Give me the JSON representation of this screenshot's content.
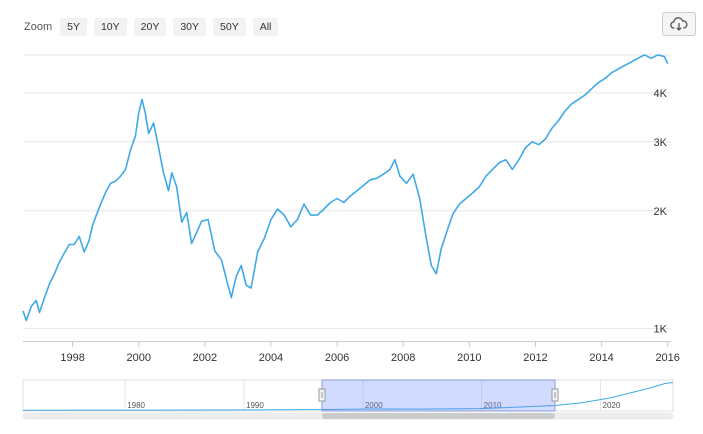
{
  "zoom": {
    "label": "Zoom",
    "buttons": [
      "5Y",
      "10Y",
      "20Y",
      "30Y",
      "50Y",
      "All"
    ]
  },
  "export": {
    "icon": "cloud-download-icon"
  },
  "chart_data": {
    "type": "line",
    "y_scale": "log",
    "grid": true,
    "xlim": [
      1996.5,
      2016.1
    ],
    "ylim": [
      930,
      5300
    ],
    "x_tick_labels": [
      "1998",
      "2000",
      "2002",
      "2004",
      "2006",
      "2008",
      "2010",
      "2012",
      "2014",
      "2016"
    ],
    "y_ticks": [
      {
        "value": 1000,
        "label": "1K"
      },
      {
        "value": 2000,
        "label": "2K"
      },
      {
        "value": 3000,
        "label": "3K"
      },
      {
        "value": 4000,
        "label": "4K"
      }
    ],
    "y_gridlines": [
      1000,
      2000,
      3000,
      4000,
      5000
    ],
    "series": [
      {
        "color": "#3fa9e8",
        "x": [
          1996.5,
          1996.6,
          1996.75,
          1996.9,
          1997.0,
          1997.15,
          1997.3,
          1997.45,
          1997.6,
          1997.75,
          1997.9,
          1998.05,
          1998.2,
          1998.35,
          1998.5,
          1998.6,
          1998.7,
          1998.85,
          1999.0,
          1999.15,
          1999.3,
          1999.45,
          1999.6,
          1999.75,
          1999.9,
          2000.0,
          2000.1,
          2000.2,
          2000.3,
          2000.45,
          2000.6,
          2000.75,
          2000.9,
          2001.0,
          2001.15,
          2001.3,
          2001.45,
          2001.6,
          2001.75,
          2001.9,
          2002.1,
          2002.3,
          2002.5,
          2002.7,
          2002.8,
          2002.95,
          2003.1,
          2003.25,
          2003.4,
          2003.6,
          2003.8,
          2004.0,
          2004.2,
          2004.4,
          2004.6,
          2004.8,
          2005.0,
          2005.2,
          2005.4,
          2005.6,
          2005.8,
          2006.0,
          2006.2,
          2006.4,
          2006.6,
          2006.8,
          2007.0,
          2007.2,
          2007.4,
          2007.6,
          2007.75,
          2007.9,
          2008.1,
          2008.3,
          2008.5,
          2008.7,
          2008.85,
          2009.0,
          2009.15,
          2009.35,
          2009.5,
          2009.7,
          2009.9,
          2010.1,
          2010.3,
          2010.5,
          2010.7,
          2010.9,
          2011.1,
          2011.3,
          2011.5,
          2011.7,
          2011.9,
          2012.1,
          2012.3,
          2012.5,
          2012.7,
          2012.9,
          2013.1,
          2013.3,
          2013.5,
          2013.7,
          2013.9,
          2014.1,
          2014.3,
          2014.5,
          2014.7,
          2014.9,
          2015.1,
          2015.3,
          2015.5,
          2015.7,
          2015.9,
          2016.0
        ],
        "y": [
          1110,
          1050,
          1140,
          1180,
          1100,
          1200,
          1300,
          1380,
          1480,
          1560,
          1640,
          1640,
          1720,
          1570,
          1680,
          1830,
          1930,
          2080,
          2230,
          2350,
          2380,
          2450,
          2550,
          2850,
          3100,
          3550,
          3850,
          3550,
          3150,
          3350,
          2900,
          2500,
          2250,
          2500,
          2300,
          1870,
          1980,
          1650,
          1760,
          1880,
          1900,
          1580,
          1500,
          1290,
          1200,
          1360,
          1450,
          1290,
          1270,
          1570,
          1700,
          1900,
          2020,
          1950,
          1820,
          1900,
          2080,
          1950,
          1950,
          2020,
          2100,
          2150,
          2100,
          2180,
          2250,
          2320,
          2400,
          2420,
          2480,
          2550,
          2700,
          2450,
          2350,
          2480,
          2150,
          1700,
          1450,
          1380,
          1600,
          1800,
          1960,
          2080,
          2150,
          2220,
          2300,
          2450,
          2550,
          2650,
          2700,
          2550,
          2700,
          2900,
          3000,
          2950,
          3050,
          3250,
          3400,
          3600,
          3750,
          3850,
          3950,
          4100,
          4250,
          4350,
          4500,
          4600,
          4700,
          4800,
          4900,
          5000,
          4900,
          5000,
          4950,
          4750
        ]
      }
    ]
  },
  "navigator": {
    "labels": [
      "1980",
      "1990",
      "2000",
      "2010",
      "2020"
    ]
  }
}
